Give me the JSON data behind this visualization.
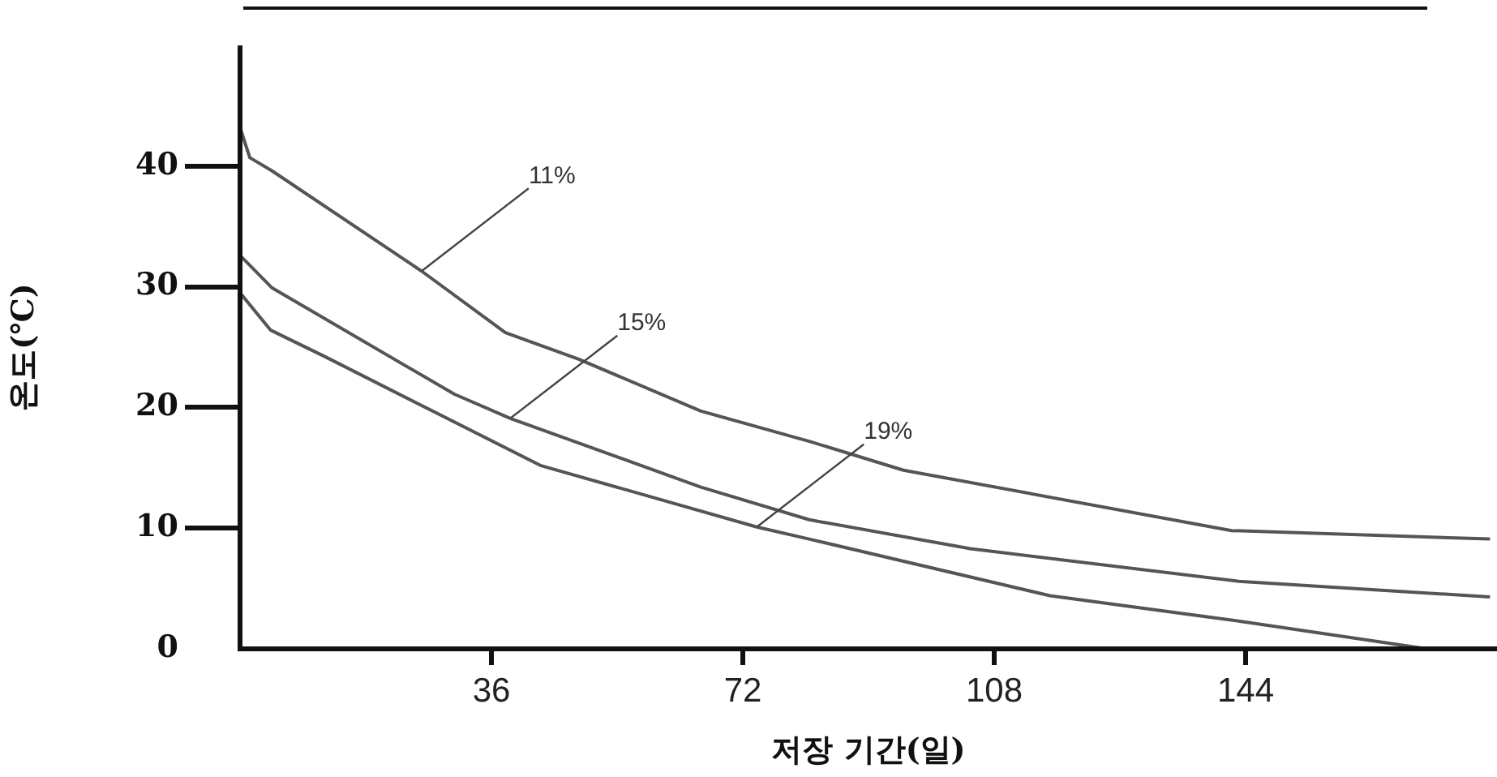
{
  "chart_data": {
    "type": "line",
    "xlabel": "저장 기간(일)",
    "ylabel": "온도(℃)",
    "xlim": [
      0,
      180
    ],
    "xticks": [
      36,
      72,
      108,
      144
    ],
    "ylim": [
      0,
      50
    ],
    "yticks": [
      0,
      10,
      20,
      30,
      40
    ],
    "grid": false,
    "legend": false,
    "marker": "none",
    "line_style": "solid",
    "series": [
      {
        "color": "#555555",
        "x": [
          0,
          1.4,
          4.6,
          26,
          38,
          48.5,
          66,
          81.5,
          95,
          142,
          179
        ],
        "values": [
          43.2,
          40.7,
          39.6,
          31.3,
          26.2,
          24,
          19.7,
          17.2,
          14.8,
          9.8,
          9.1
        ]
      },
      {
        "color": "#555555",
        "x": [
          0,
          4.6,
          30.7,
          38.7,
          66,
          81.5,
          104.6,
          143,
          179
        ],
        "values": [
          32.6,
          29.9,
          21.1,
          19.1,
          13.4,
          10.7,
          8.3,
          5.6,
          4.3
        ]
      },
      {
        "color": "#555555",
        "x": [
          0,
          4.4,
          12.2,
          43,
          74,
          81.5,
          116,
          143,
          170
        ],
        "values": [
          29.5,
          26.4,
          24.2,
          15.2,
          10.1,
          9.1,
          4.4,
          2.3,
          0
        ]
      }
    ],
    "annotations": [
      {
        "text": "11%",
        "x": 26,
        "y": 31.3
      },
      {
        "text": "15%",
        "x": 38.7,
        "y": 19.1
      },
      {
        "text": "19%",
        "x": 74,
        "y": 10.1
      }
    ]
  }
}
